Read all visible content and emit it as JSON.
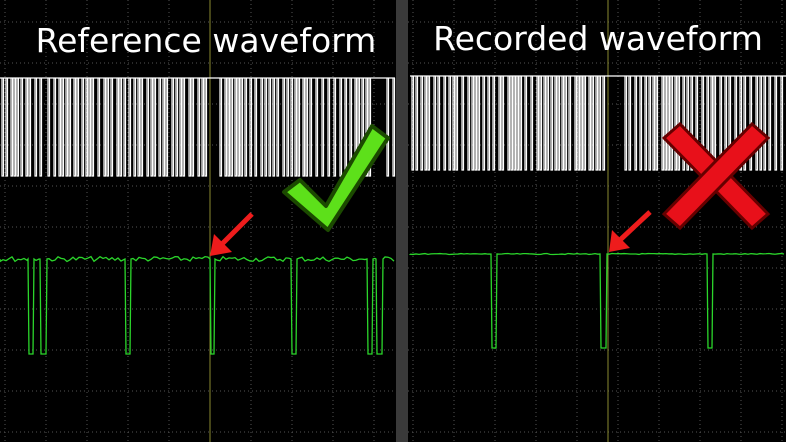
{
  "panels": [
    {
      "title": "Reference waveform"
    },
    {
      "title": "Recorded waveform"
    }
  ]
}
